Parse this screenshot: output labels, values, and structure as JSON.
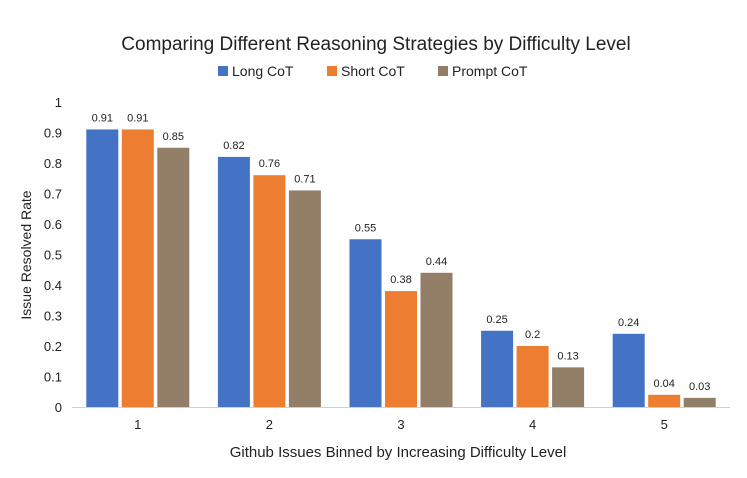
{
  "chart_data": {
    "type": "bar",
    "title": "Comparing Different Reasoning Strategies by Difficulty Level",
    "xlabel": "Github Issues Binned by Increasing Difficulty Level",
    "ylabel": "Issue Resolved Rate",
    "ylim": [
      0,
      1
    ],
    "yticks": [
      "0",
      "0.1",
      "0.2",
      "0.3",
      "0.4",
      "0.5",
      "0.6",
      "0.7",
      "0.8",
      "0.9",
      "1"
    ],
    "grid": false,
    "legend_position": "top-center",
    "categories": [
      "1",
      "2",
      "3",
      "4",
      "5"
    ],
    "series": [
      {
        "name": "Long CoT",
        "color": "#4472C4",
        "values": [
          0.91,
          0.82,
          0.55,
          0.25,
          0.24
        ]
      },
      {
        "name": "Short CoT",
        "color": "#ED7D31",
        "values": [
          0.91,
          0.76,
          0.38,
          0.2,
          0.04
        ]
      },
      {
        "name": "Prompt CoT",
        "color": "#937E68",
        "values": [
          0.85,
          0.71,
          0.44,
          0.13,
          0.03
        ]
      }
    ]
  }
}
